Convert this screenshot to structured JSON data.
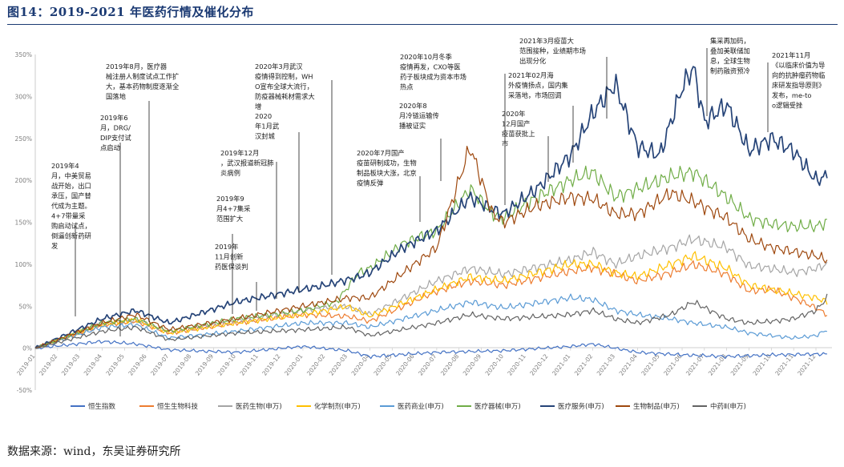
{
  "figure_title": "图14：2019-2021 年医药行情及催化分布",
  "source": "数据来源：wind，东吴证券研究所",
  "colors": {
    "恒生指数": "#4472c4",
    "恒生生物科技": "#ed7d31",
    "医药生物(申万)": "#a5a5a5",
    "化学制剂(申万)": "#ffc000",
    "医药商业(申万)": "#5b9bd5",
    "医疗器械(申万)": "#70ad47",
    "医疗服务(申万)": "#264478",
    "生物制品(申万)": "#9e480e",
    "中药Ⅱ(申万)": "#636363"
  },
  "chart_data": {
    "type": "line",
    "y_unit": "%",
    "ylim": [
      -50,
      350
    ],
    "yticks": [
      -50,
      0,
      50,
      100,
      150,
      200,
      250,
      300,
      350
    ],
    "ytick_labels": [
      "-50%",
      "0%",
      "50%",
      "100%",
      "150%",
      "200%",
      "250%",
      "300%",
      "350%"
    ],
    "x_tick_labels": [
      "2019-01",
      "2019-02",
      "2019-03",
      "2019-04",
      "2019-05",
      "2019-06",
      "2019-07",
      "2019-08",
      "2019-09",
      "2019-10",
      "2019-11",
      "2019-12",
      "2020-01",
      "2020-02",
      "2020-03",
      "2020-04",
      "2020-05",
      "2020-06",
      "2020-07",
      "2020-08",
      "2020-09",
      "2020-10",
      "2020-11",
      "2020-12",
      "2021-01",
      "2021-02",
      "2021-03",
      "2021-04",
      "2021-05",
      "2021-06",
      "2021-07",
      "2021-08",
      "2021-09",
      "2021-10",
      "2021-11",
      "2021-12"
    ],
    "legend_position": "bottom",
    "grid": false,
    "series": [
      {
        "name": "恒生指数",
        "x": [
          0,
          3,
          4.5,
          6,
          9,
          12,
          14,
          15,
          18,
          21,
          24,
          25,
          26,
          27,
          29,
          31,
          33,
          35.5
        ],
        "values": [
          0,
          8,
          5,
          -2,
          -5,
          2,
          -3,
          -10,
          -5,
          -3,
          2,
          5,
          0,
          -5,
          -8,
          -10,
          -8,
          -7
        ]
      },
      {
        "name": "恒生生物科技",
        "x": [
          0,
          3,
          4.5,
          6,
          9,
          12,
          14,
          15,
          18,
          19.5,
          21,
          24,
          25,
          26,
          27,
          28.5,
          29.5,
          31,
          32,
          33,
          34,
          35,
          35.5
        ],
        "values": [
          0,
          28,
          32,
          18,
          30,
          40,
          38,
          32,
          68,
          80,
          75,
          92,
          96,
          88,
          80,
          90,
          100,
          88,
          68,
          70,
          60,
          48,
          40
        ]
      },
      {
        "name": "医药生物(申万)",
        "x": [
          0,
          3,
          4.5,
          6,
          9,
          12,
          14,
          15,
          18,
          19.5,
          21,
          24,
          25,
          26,
          27,
          28.5,
          29.5,
          31,
          32,
          33,
          34,
          35,
          35.5
        ],
        "values": [
          0,
          30,
          33,
          20,
          32,
          45,
          50,
          40,
          80,
          95,
          88,
          105,
          115,
          100,
          110,
          120,
          130,
          120,
          98,
          95,
          90,
          95,
          100
        ]
      },
      {
        "name": "化学制剂(申万)",
        "x": [
          0,
          3,
          4.5,
          6,
          9,
          12,
          14,
          15,
          18,
          19.5,
          21,
          24,
          25,
          26,
          27,
          28.5,
          29.5,
          31,
          32,
          33,
          34,
          35,
          35.5
        ],
        "values": [
          0,
          28,
          34,
          18,
          30,
          40,
          50,
          38,
          70,
          85,
          80,
          100,
          100,
          90,
          85,
          100,
          110,
          95,
          75,
          70,
          65,
          60,
          55
        ]
      },
      {
        "name": "医药商业(申万)",
        "x": [
          0,
          3,
          4.5,
          6,
          9,
          12,
          14,
          15,
          18,
          19.5,
          21,
          24,
          25,
          26,
          27,
          28.5,
          29.5,
          31,
          32,
          33,
          34,
          35,
          35.5
        ],
        "values": [
          0,
          25,
          28,
          12,
          20,
          30,
          30,
          25,
          45,
          55,
          48,
          60,
          58,
          45,
          40,
          35,
          30,
          25,
          18,
          15,
          12,
          15,
          22
        ]
      },
      {
        "name": "医疗器械(申万)",
        "x": [
          0,
          3,
          4.5,
          6,
          9,
          12,
          13.5,
          14.5,
          15,
          16.5,
          18,
          19.5,
          20.5,
          21,
          22.5,
          24,
          25,
          26,
          27,
          28.5,
          29.5,
          31,
          32,
          33,
          34,
          35,
          35.5
        ],
        "values": [
          0,
          30,
          35,
          20,
          35,
          45,
          55,
          90,
          95,
          125,
          140,
          190,
          160,
          155,
          180,
          200,
          210,
          180,
          190,
          205,
          210,
          180,
          155,
          148,
          145,
          145,
          150
        ]
      },
      {
        "name": "医疗服务(申万)",
        "x": [
          0,
          3,
          4.5,
          6,
          9,
          12,
          13,
          14.5,
          15,
          16.5,
          18,
          19.5,
          20.5,
          21,
          22.5,
          24,
          25,
          26,
          27,
          28,
          29,
          29.5,
          30,
          31,
          32,
          33,
          34,
          35,
          35.5
        ],
        "values": [
          0,
          35,
          45,
          30,
          55,
          70,
          75,
          85,
          90,
          120,
          140,
          180,
          165,
          160,
          190,
          230,
          280,
          315,
          240,
          230,
          310,
          335,
          270,
          290,
          235,
          250,
          235,
          200,
          205
        ]
      },
      {
        "name": "生物制品(申万)",
        "x": [
          0,
          3,
          4.5,
          6,
          9,
          12,
          14,
          15,
          18,
          19.5,
          20.5,
          21,
          22.5,
          24,
          25,
          26,
          27,
          28.5,
          29.5,
          31,
          32,
          33,
          34,
          35,
          35.5
        ],
        "values": [
          0,
          30,
          40,
          22,
          35,
          50,
          60,
          60,
          120,
          240,
          160,
          150,
          170,
          180,
          178,
          160,
          160,
          185,
          175,
          155,
          130,
          120,
          115,
          110,
          105
        ]
      },
      {
        "name": "中药Ⅱ(申万)",
        "x": [
          0,
          3,
          4.5,
          6,
          9,
          12,
          14,
          15,
          18,
          19.5,
          21,
          24,
          25,
          26,
          27,
          28.5,
          29.5,
          31,
          32,
          33,
          34,
          35,
          35.5
        ],
        "values": [
          0,
          20,
          25,
          10,
          18,
          22,
          25,
          15,
          30,
          40,
          35,
          40,
          45,
          35,
          30,
          40,
          55,
          35,
          30,
          32,
          35,
          45,
          60
        ]
      }
    ],
    "annotations": [
      {
        "text": "2019年4月，中美贸易战开始，出口承压，国产替代成为主题。4+7带量采购启动试点，倒逼创新药研发",
        "date": "2019-04"
      },
      {
        "text": "2019年6月，DRG/DIP支付试点启动",
        "date": "2019-06"
      },
      {
        "text": "2019年8月，医疗器械注册人制度试点工作扩大，基本药物制度逐渐全国落地",
        "date": "2019-08"
      },
      {
        "text": "2019年9月4+7集采范围扩大",
        "date": "2019-09"
      },
      {
        "text": "2019年11月创新药医保谈判",
        "date": "2019-11"
      },
      {
        "text": "2019年12月，武汉报道新冠肺炎病例",
        "date": "2019-12"
      },
      {
        "text": "2020年1月武汉封城",
        "date": "2020-01"
      },
      {
        "text": "2020年3月武汉疫情得到控制，WHO宣布全球大流行，防疫器械耗材需求大增",
        "date": "2020-03"
      },
      {
        "text": "2020年7月国产疫苗研制成功，生物制品板块大涨，北京疫情反弹",
        "date": "2020-07"
      },
      {
        "text": "2020年8月冷链运输传播被证实",
        "date": "2020-08"
      },
      {
        "text": "2020年10月冬季疫情再发，CXO等医药子板块成为资本市场热点",
        "date": "2020-10"
      },
      {
        "text": "2020年12月国产疫苗获批上市",
        "date": "2020-12"
      },
      {
        "text": "2021年02月海外疫情扬点，国内集采落地，市场回调",
        "date": "2021-02"
      },
      {
        "text": "2021年3月疫苗大范围接种，业绩期市场出现分化",
        "date": "2021-03"
      },
      {
        "text": "集采再加码，叠加美联储加息，全球生物制药融资预冷",
        "date": "2021-07"
      },
      {
        "text": "2021年11月《以临床价值为导向的抗肿瘤药物临床研发指导原则》发布，me-too逻辑受挫",
        "date": "2021-11"
      }
    ]
  }
}
